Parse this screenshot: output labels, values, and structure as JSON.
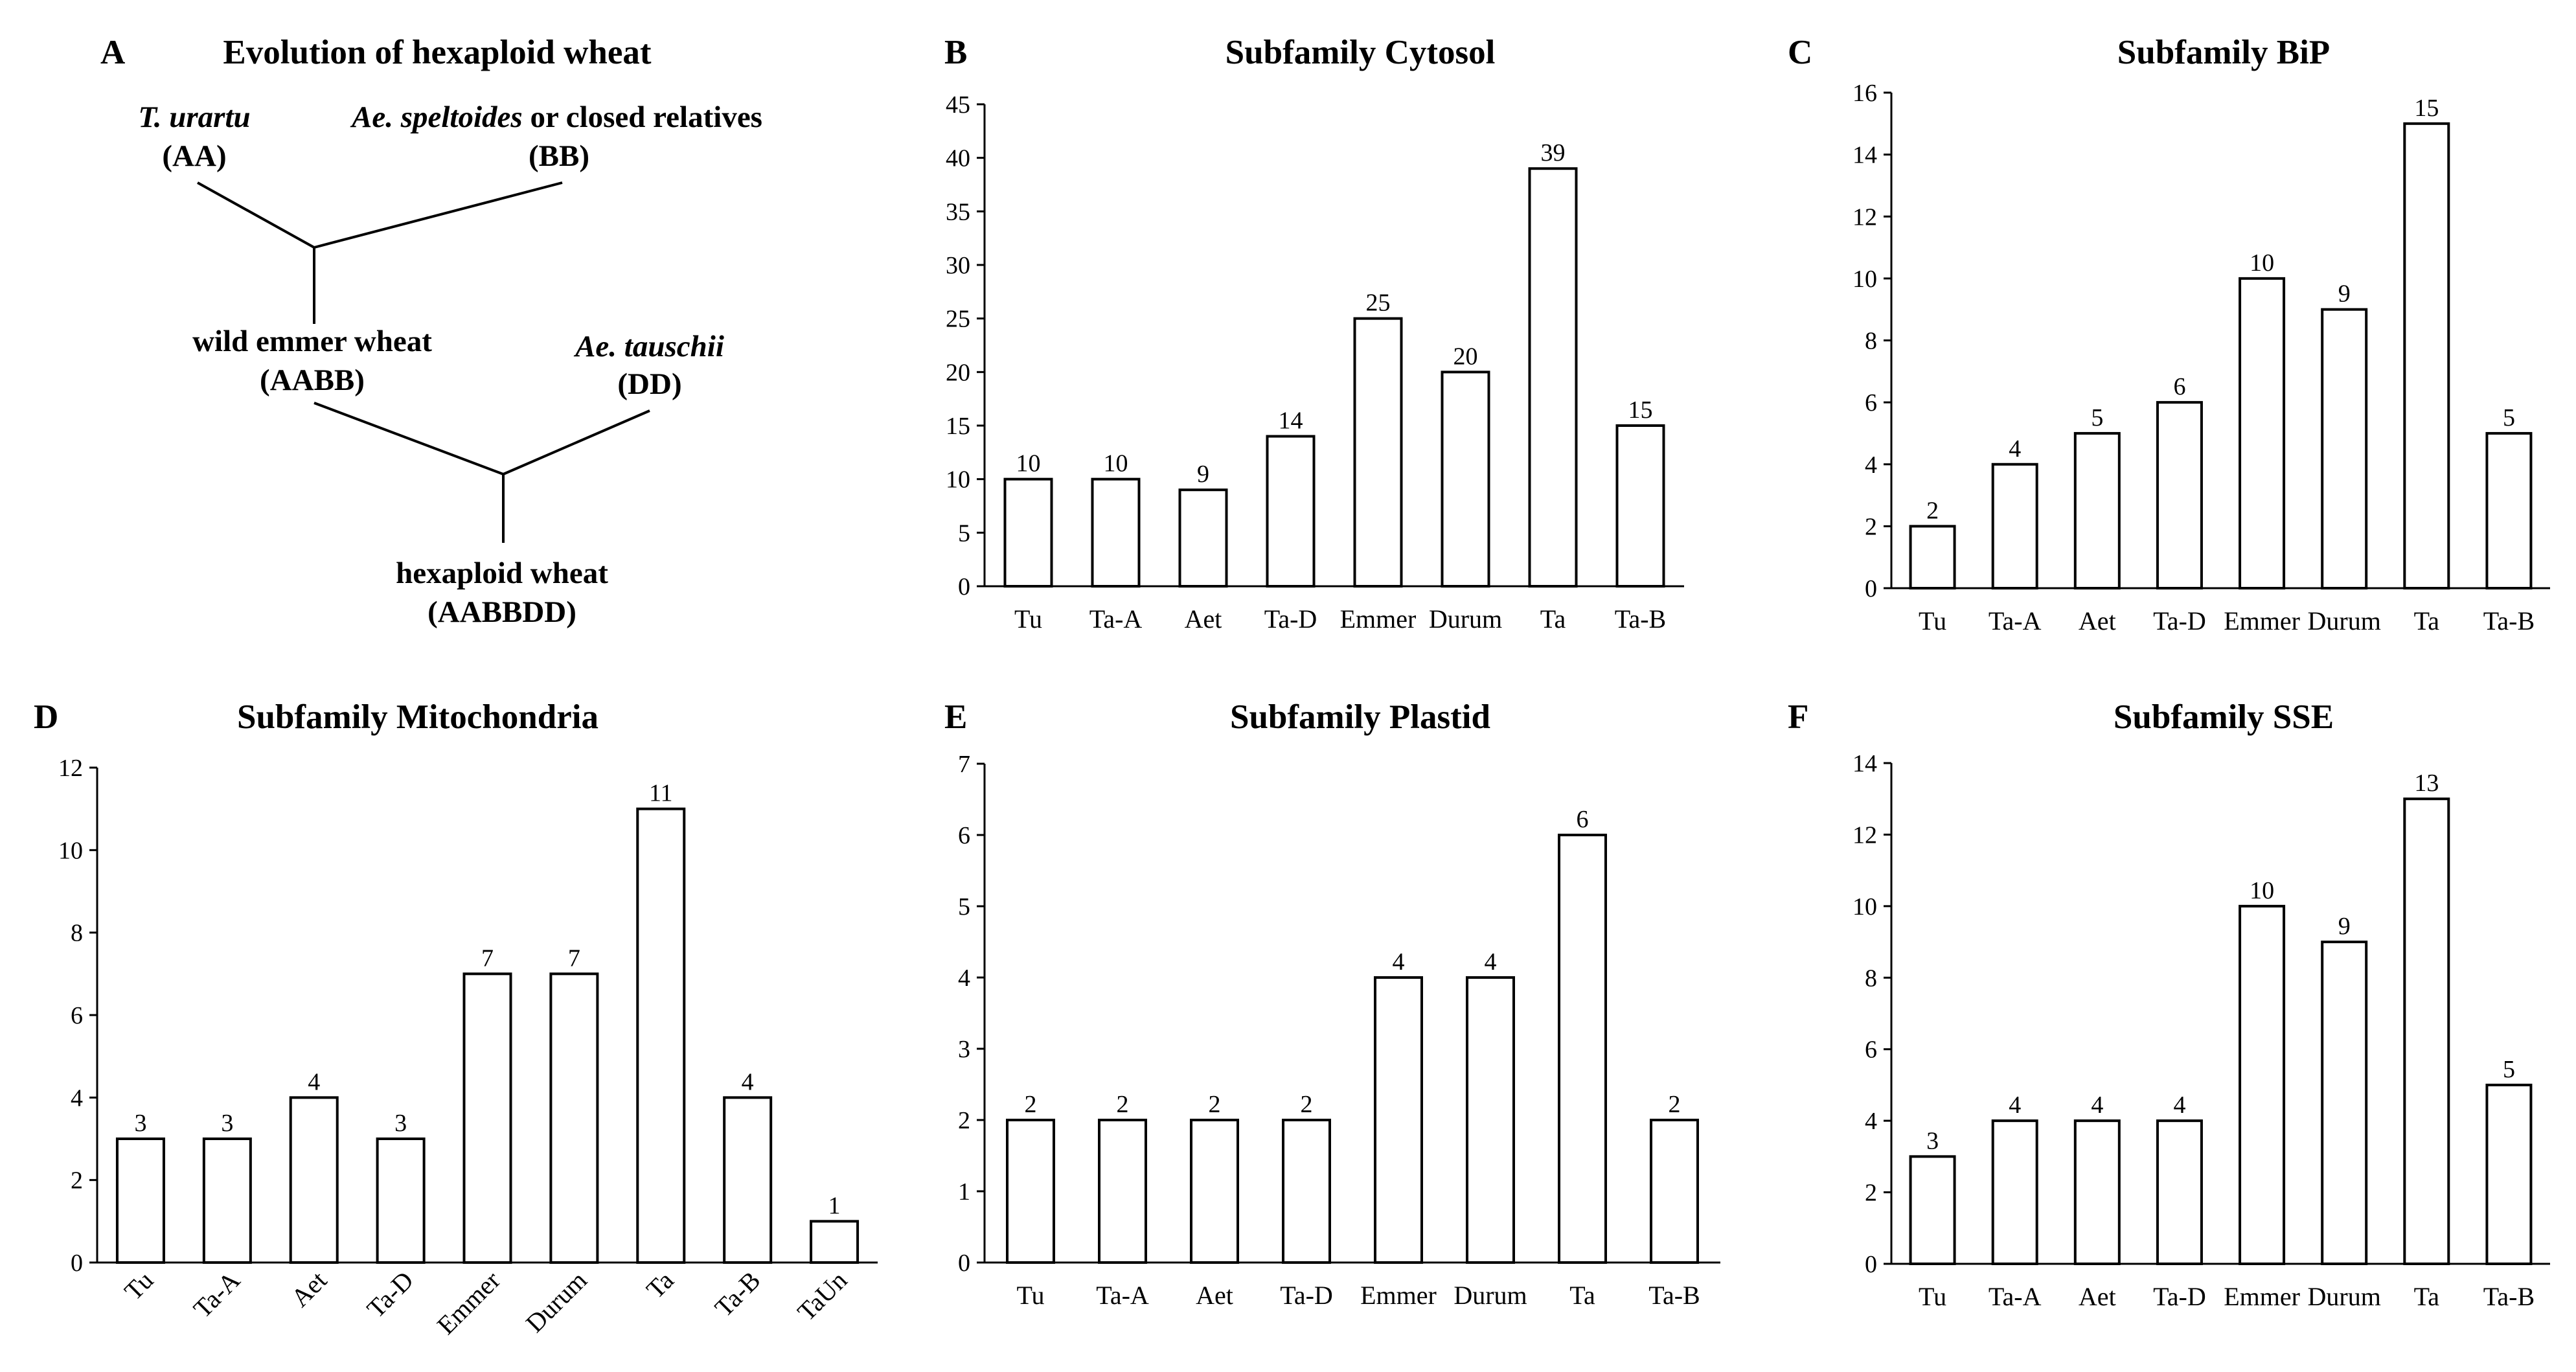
{
  "tree": {
    "panel_label": "A",
    "title": "Evolution of hexaploid wheat",
    "n1_name": "T. urartu",
    "n1_genome": "(AA)",
    "n2_name_italic": "Ae. speltoides",
    "n2_name_rest": " or closed relatives",
    "n2_genome": "(BB)",
    "n3_name": "wild emmer wheat",
    "n3_genome": "(AABB)",
    "n4_name": "Ae. tauschii",
    "n4_genome": "(DD)",
    "n5_name": "hexaploid wheat",
    "n5_genome": "(AABBDD)"
  },
  "chart_data": [
    {
      "panel_label": "B",
      "type": "bar",
      "title": "Subfamily Cytosol",
      "categories": [
        "Tu",
        "Ta-A",
        "Aet",
        "Ta-D",
        "Emmer",
        "Durum",
        "Ta",
        "Ta-B"
      ],
      "values": [
        10,
        10,
        9,
        14,
        25,
        20,
        39,
        15
      ],
      "yticks": [
        0,
        5,
        10,
        15,
        20,
        25,
        30,
        35,
        40,
        45
      ],
      "ylim": [
        0,
        45
      ],
      "xlabel": "",
      "ylabel": "",
      "rotated_xticks": false
    },
    {
      "panel_label": "C",
      "type": "bar",
      "title": "Subfamily BiP",
      "categories": [
        "Tu",
        "Ta-A",
        "Aet",
        "Ta-D",
        "Emmer",
        "Durum",
        "Ta",
        "Ta-B"
      ],
      "values": [
        2,
        4,
        5,
        6,
        10,
        9,
        15,
        5
      ],
      "yticks": [
        0,
        2,
        4,
        6,
        8,
        10,
        12,
        14,
        16
      ],
      "ylim": [
        0,
        16
      ],
      "xlabel": "",
      "ylabel": "",
      "rotated_xticks": false
    },
    {
      "panel_label": "D",
      "type": "bar",
      "title": "Subfamily Mitochondria",
      "categories": [
        "Tu",
        "Ta-A",
        "Aet",
        "Ta-D",
        "Emmer",
        "Durum",
        "Ta",
        "Ta-B",
        "TaUn"
      ],
      "values": [
        3,
        3,
        4,
        3,
        7,
        7,
        11,
        4,
        1
      ],
      "yticks": [
        0,
        2,
        4,
        6,
        8,
        10,
        12
      ],
      "ylim": [
        0,
        12
      ],
      "xlabel": "",
      "ylabel": "",
      "rotated_xticks": true
    },
    {
      "panel_label": "E",
      "type": "bar",
      "title": "Subfamily Plastid",
      "categories": [
        "Tu",
        "Ta-A",
        "Aet",
        "Ta-D",
        "Emmer",
        "Durum",
        "Ta",
        "Ta-B"
      ],
      "values": [
        2,
        2,
        2,
        2,
        4,
        4,
        6,
        2
      ],
      "yticks": [
        0,
        1,
        2,
        3,
        4,
        5,
        6,
        7
      ],
      "ylim": [
        0,
        7
      ],
      "xlabel": "",
      "ylabel": "",
      "rotated_xticks": false
    },
    {
      "panel_label": "F",
      "type": "bar",
      "title": "Subfamily SSE",
      "categories": [
        "Tu",
        "Ta-A",
        "Aet",
        "Ta-D",
        "Emmer",
        "Durum",
        "Ta",
        "Ta-B"
      ],
      "values": [
        3,
        4,
        4,
        4,
        10,
        9,
        13,
        5
      ],
      "yticks": [
        0,
        2,
        4,
        6,
        8,
        10,
        12,
        14
      ],
      "ylim": [
        0,
        14
      ],
      "xlabel": "",
      "ylabel": "",
      "rotated_xticks": false
    }
  ]
}
